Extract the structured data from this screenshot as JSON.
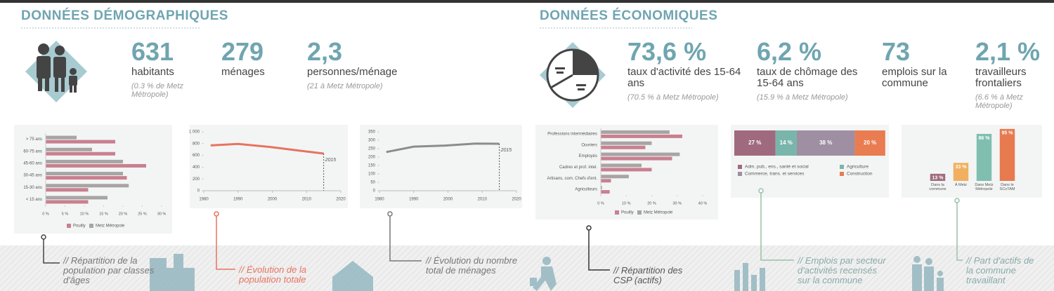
{
  "sections": [
    {
      "title": "DONNÉES DÉMOGRAPHIQUES",
      "stats": [
        {
          "value": "631",
          "label": "habitants",
          "note": "(0.3 % de Metz Métropole)"
        },
        {
          "value": "279",
          "label": "ménages"
        },
        {
          "value": "2,3",
          "label": "personnes/ménage",
          "note": "(21 à Metz Métropole)"
        }
      ]
    },
    {
      "title": "DONNÉES ÉCONOMIQUES",
      "stats": [
        {
          "value": "73,6 %",
          "label": "taux d'activité des 15-64 ans",
          "note": "(70.5 % à Metz Métropole)"
        },
        {
          "value": "6,2 %",
          "label": "taux de chômage des 15-64 ans",
          "note": "(15.9 % à Metz Métropole)"
        },
        {
          "value": "73",
          "label": "emplois sur la commune"
        },
        {
          "value": "2,1 %",
          "label": "travailleurs frontaliers",
          "note": "(6.6 % à Metz Métropole)"
        }
      ]
    }
  ],
  "chart_data": [
    {
      "type": "bar",
      "orientation": "horizontal",
      "title": "// Répartition de la population par classes d'âges",
      "categories": [
        "> 75 ans",
        "60-75 ans",
        "45-60 ans",
        "30-45 ans",
        "15-30 ans",
        "< 15 ans"
      ],
      "series": [
        {
          "name": "Pouilly",
          "color": "#c9808f",
          "values": [
            18,
            18,
            26,
            21,
            11,
            11
          ]
        },
        {
          "name": "Metz Métropole",
          "color": "#a8a4a4",
          "values": [
            8,
            12,
            20,
            20,
            21.5,
            16
          ]
        }
      ],
      "xlim": [
        0,
        30
      ],
      "xticks": [
        {
          "value": 0,
          "label": "0 %"
        },
        {
          "value": 5,
          "label": "5 %"
        },
        {
          "value": 10,
          "label": "10 %"
        },
        {
          "value": 15,
          "label": "15 %"
        },
        {
          "value": 20,
          "label": "20 %"
        },
        {
          "value": 25,
          "label": "25 %"
        },
        {
          "value": 30,
          "label": "30 %"
        }
      ],
      "legend": "bottom"
    },
    {
      "type": "line",
      "title": "// Évolution de la population totale",
      "annotation": "2015",
      "x": [
        1982,
        1990,
        1999,
        2008,
        2015
      ],
      "values": [
        770,
        795,
        745,
        680,
        631
      ],
      "color": "#e8735f",
      "xlim": [
        1980,
        2020
      ],
      "xticks": [
        1980,
        1990,
        2000,
        2010,
        2020
      ],
      "ylim": [
        0,
        1000
      ],
      "yticks": [
        0,
        200,
        400,
        600,
        800,
        {
          "value": 1000,
          "label": "1 000"
        }
      ]
    },
    {
      "type": "line",
      "title": "// Évolution du nombre total de ménages",
      "annotation": "2015",
      "x": [
        1982,
        1990,
        1999,
        2008,
        2015
      ],
      "values": [
        230,
        262,
        268,
        280,
        279
      ],
      "color": "#8c8c8c",
      "xlim": [
        1980,
        2020
      ],
      "xticks": [
        1980,
        1990,
        2000,
        2010,
        2020
      ],
      "ylim": [
        0,
        350
      ],
      "yticks": [
        0,
        50,
        100,
        150,
        200,
        250,
        300,
        350
      ]
    },
    {
      "type": "bar",
      "orientation": "horizontal",
      "title": "// Répartition des CSP (actifs)",
      "categories": [
        "Professions intermédiaires",
        "Ouvriers",
        "Employés",
        "Cadres et prof. intel.",
        "Artisans, com. Chefs d'ent.",
        "Agriculteurs"
      ],
      "series": [
        {
          "name": "Pouilly",
          "color": "#c9808f",
          "values": [
            32,
            17.5,
            28,
            20,
            4,
            3.5
          ]
        },
        {
          "name": "Metz Métropole",
          "color": "#a8a4a4",
          "values": [
            27,
            20,
            31,
            16,
            11,
            0.5
          ]
        }
      ],
      "xlim": [
        0,
        40
      ],
      "xticks": [
        {
          "value": 0,
          "label": "0 %"
        },
        {
          "value": 10,
          "label": "10 %"
        },
        {
          "value": 20,
          "label": "20 %"
        },
        {
          "value": 30,
          "label": "30 %"
        },
        {
          "value": 40,
          "label": "40 %"
        }
      ],
      "legend": "bottom"
    },
    {
      "type": "bar",
      "orientation": "horizontal",
      "stacked": true,
      "title": "// Emplois par secteur d'activités recensés sur la commune",
      "xlim": [
        0,
        100
      ],
      "series": [
        {
          "name": "Adm. pub., ens., santé et social",
          "color": "#a06a7e",
          "values": [
            27
          ],
          "value_labels": [
            "27 %"
          ]
        },
        {
          "name": "Agriculture",
          "color": "#7ab5ab",
          "values": [
            14
          ],
          "value_labels": [
            "14 %"
          ]
        },
        {
          "name": "Commerce, trans. et services",
          "color": "#9e8fa3",
          "values": [
            38
          ],
          "value_labels": [
            "38 %"
          ]
        },
        {
          "name": "Construction",
          "color": "#e97c50",
          "values": [
            20
          ],
          "value_labels": [
            "20 %"
          ]
        }
      ],
      "legend": "bottom"
    },
    {
      "type": "bar",
      "orientation": "vertical",
      "title": "// Part d'actifs de la commune travaillant",
      "categories": [
        "Dans la commune",
        "À Metz",
        "Dans Metz Métropole",
        "Dans le SCoTAM"
      ],
      "values": [
        13,
        33,
        86,
        95
      ],
      "value_labels": [
        "13 %",
        "33 %",
        "86 %",
        "95 %"
      ],
      "colors": [
        "#a06a7e",
        "#f0b060",
        "#80bfb0",
        "#e87a4f"
      ],
      "ylim": [
        0,
        100
      ]
    }
  ]
}
